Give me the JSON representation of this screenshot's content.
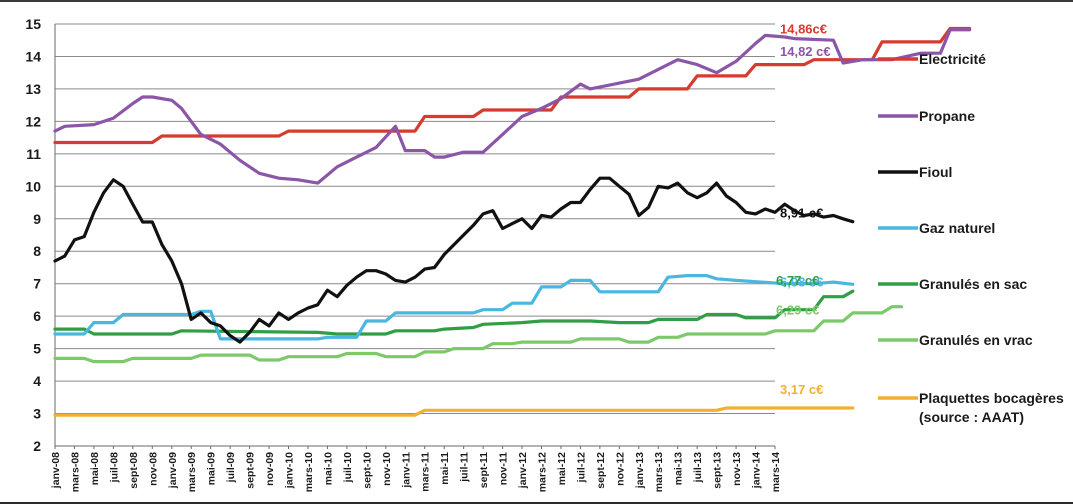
{
  "chart_data": {
    "type": "line",
    "ylim": [
      2,
      15
    ],
    "yticks": [
      2,
      3,
      4,
      5,
      6,
      7,
      8,
      9,
      10,
      11,
      12,
      13,
      14,
      15
    ],
    "grid": true,
    "legend_position": "right",
    "months_count": 75,
    "x_tick_labels": [
      "janv-08",
      "mars-08",
      "mai-08",
      "juil-08",
      "sept-08",
      "nov-08",
      "janv-09",
      "mars-09",
      "mai-09",
      "juil-09",
      "sept-09",
      "nov-09",
      "janv-10",
      "mars-10",
      "mai-10",
      "juil-10",
      "sept-10",
      "nov-10",
      "janv-11",
      "mars-11",
      "mai-11",
      "juil-11",
      "sept-11",
      "nov-11",
      "janv-12",
      "mars-12",
      "mai-12",
      "juil-12",
      "sept-12",
      "nov-12",
      "janv-13",
      "mars-13",
      "mai-13",
      "juil-13",
      "sept-13",
      "nov-13",
      "janv-14",
      "mars-14"
    ],
    "series": [
      {
        "name": "Electricité",
        "color": "#d63b2f",
        "end_label": "14,86c€",
        "points": [
          [
            0,
            11.35
          ],
          [
            10,
            11.35
          ],
          [
            11,
            11.55
          ],
          [
            23,
            11.55
          ],
          [
            24,
            11.7
          ],
          [
            37,
            11.7
          ],
          [
            38,
            12.15
          ],
          [
            43,
            12.15
          ],
          [
            44,
            12.35
          ],
          [
            51,
            12.35
          ],
          [
            52,
            12.75
          ],
          [
            59,
            12.75
          ],
          [
            60,
            13.0
          ],
          [
            65,
            13.0
          ],
          [
            66,
            13.4
          ],
          [
            71,
            13.4
          ],
          [
            72,
            13.75
          ],
          [
            77,
            13.75
          ],
          [
            78,
            13.9
          ],
          [
            84,
            13.9
          ],
          [
            85,
            14.45
          ],
          [
            91,
            14.45
          ],
          [
            92,
            14.86
          ],
          [
            94,
            14.86
          ]
        ]
      },
      {
        "name": "Propane",
        "color": "#8b55a8",
        "end_label": "14,82 c€",
        "points": [
          [
            0,
            11.7
          ],
          [
            1,
            11.85
          ],
          [
            4,
            11.9
          ],
          [
            6,
            12.1
          ],
          [
            8,
            12.55
          ],
          [
            9,
            12.75
          ],
          [
            10,
            12.75
          ],
          [
            12,
            12.65
          ],
          [
            13,
            12.4
          ],
          [
            15,
            11.6
          ],
          [
            17,
            11.3
          ],
          [
            19,
            10.8
          ],
          [
            21,
            10.4
          ],
          [
            23,
            10.25
          ],
          [
            25,
            10.2
          ],
          [
            27,
            10.1
          ],
          [
            29,
            10.6
          ],
          [
            31,
            10.9
          ],
          [
            33,
            11.2
          ],
          [
            35,
            11.85
          ],
          [
            36,
            11.1
          ],
          [
            38,
            11.1
          ],
          [
            39,
            10.9
          ],
          [
            40,
            10.9
          ],
          [
            42,
            11.05
          ],
          [
            44,
            11.05
          ],
          [
            46,
            11.6
          ],
          [
            48,
            12.15
          ],
          [
            50,
            12.4
          ],
          [
            52,
            12.7
          ],
          [
            54,
            13.15
          ],
          [
            55,
            13.0
          ],
          [
            60,
            13.3
          ],
          [
            64,
            13.9
          ],
          [
            66,
            13.75
          ],
          [
            68,
            13.5
          ],
          [
            70,
            13.85
          ],
          [
            72,
            14.4
          ],
          [
            73,
            14.65
          ],
          [
            75,
            14.6
          ],
          [
            76,
            14.55
          ],
          [
            80,
            14.5
          ],
          [
            81,
            13.8
          ],
          [
            83,
            13.9
          ],
          [
            86,
            13.9
          ],
          [
            89,
            14.1
          ],
          [
            91,
            14.1
          ],
          [
            92,
            14.82
          ],
          [
            94,
            14.82
          ]
        ]
      },
      {
        "name": "Fioul",
        "color": "#111111",
        "end_label": "8,91 c€",
        "points": [
          [
            0,
            7.7
          ],
          [
            1,
            7.85
          ],
          [
            2,
            8.35
          ],
          [
            3,
            8.45
          ],
          [
            4,
            9.2
          ],
          [
            5,
            9.8
          ],
          [
            6,
            10.2
          ],
          [
            7,
            10.0
          ],
          [
            8,
            9.45
          ],
          [
            9,
            8.9
          ],
          [
            10,
            8.9
          ],
          [
            11,
            8.2
          ],
          [
            12,
            7.7
          ],
          [
            13,
            7.0
          ],
          [
            14,
            5.9
          ],
          [
            15,
            6.1
          ],
          [
            16,
            5.8
          ],
          [
            17,
            5.7
          ],
          [
            18,
            5.4
          ],
          [
            19,
            5.2
          ],
          [
            20,
            5.5
          ],
          [
            21,
            5.9
          ],
          [
            22,
            5.7
          ],
          [
            23,
            6.1
          ],
          [
            24,
            5.9
          ],
          [
            25,
            6.1
          ],
          [
            26,
            6.25
          ],
          [
            27,
            6.35
          ],
          [
            28,
            6.8
          ],
          [
            29,
            6.6
          ],
          [
            30,
            6.95
          ],
          [
            31,
            7.2
          ],
          [
            32,
            7.4
          ],
          [
            33,
            7.4
          ],
          [
            34,
            7.3
          ],
          [
            35,
            7.1
          ],
          [
            36,
            7.05
          ],
          [
            37,
            7.2
          ],
          [
            38,
            7.45
          ],
          [
            39,
            7.5
          ],
          [
            40,
            7.9
          ],
          [
            41,
            8.2
          ],
          [
            42,
            8.5
          ],
          [
            43,
            8.8
          ],
          [
            44,
            9.15
          ],
          [
            45,
            9.25
          ],
          [
            46,
            8.7
          ],
          [
            47,
            8.85
          ],
          [
            48,
            9.0
          ],
          [
            49,
            8.7
          ],
          [
            50,
            9.1
          ],
          [
            51,
            9.05
          ],
          [
            52,
            9.3
          ],
          [
            53,
            9.5
          ],
          [
            54,
            9.5
          ],
          [
            55,
            9.9
          ],
          [
            56,
            10.25
          ],
          [
            57,
            10.25
          ],
          [
            58,
            10.0
          ],
          [
            59,
            9.75
          ],
          [
            60,
            9.1
          ],
          [
            61,
            9.35
          ],
          [
            62,
            10.0
          ],
          [
            63,
            9.95
          ],
          [
            64,
            10.1
          ],
          [
            65,
            9.8
          ],
          [
            66,
            9.65
          ],
          [
            67,
            9.8
          ],
          [
            68,
            10.1
          ],
          [
            69,
            9.7
          ],
          [
            70,
            9.5
          ],
          [
            71,
            9.2
          ],
          [
            72,
            9.15
          ],
          [
            73,
            9.3
          ],
          [
            74,
            9.2
          ],
          [
            75,
            9.45
          ],
          [
            76,
            9.25
          ],
          [
            77,
            9.1
          ],
          [
            78,
            9.15
          ],
          [
            79,
            9.05
          ],
          [
            80,
            9.1
          ],
          [
            81,
            9.0
          ],
          [
            82,
            8.91
          ]
        ]
      },
      {
        "name": "Gaz naturel",
        "color": "#4ab7e0",
        "end_label": "6,98 c€",
        "points": [
          [
            0,
            5.45
          ],
          [
            3,
            5.45
          ],
          [
            4,
            5.8
          ],
          [
            6,
            5.8
          ],
          [
            7,
            6.05
          ],
          [
            14,
            6.05
          ],
          [
            15,
            6.15
          ],
          [
            16,
            6.15
          ],
          [
            17,
            5.3
          ],
          [
            27,
            5.3
          ],
          [
            28,
            5.35
          ],
          [
            31,
            5.35
          ],
          [
            32,
            5.85
          ],
          [
            34,
            5.85
          ],
          [
            35,
            6.1
          ],
          [
            43,
            6.1
          ],
          [
            44,
            6.2
          ],
          [
            46,
            6.2
          ],
          [
            47,
            6.4
          ],
          [
            49,
            6.4
          ],
          [
            50,
            6.9
          ],
          [
            52,
            6.9
          ],
          [
            53,
            7.1
          ],
          [
            55,
            7.1
          ],
          [
            56,
            6.75
          ],
          [
            62,
            6.75
          ],
          [
            63,
            7.2
          ],
          [
            65,
            7.25
          ],
          [
            67,
            7.25
          ],
          [
            68,
            7.15
          ],
          [
            70,
            7.1
          ],
          [
            75,
            7.0
          ],
          [
            78,
            7.0
          ],
          [
            80,
            7.05
          ],
          [
            82,
            6.98
          ]
        ]
      },
      {
        "name": "Granulés en sac",
        "color": "#2f9e44",
        "end_label": "6,77 c€",
        "points": [
          [
            0,
            5.6
          ],
          [
            3,
            5.6
          ],
          [
            4,
            5.45
          ],
          [
            12,
            5.45
          ],
          [
            13,
            5.55
          ],
          [
            27,
            5.5
          ],
          [
            29,
            5.45
          ],
          [
            34,
            5.45
          ],
          [
            35,
            5.55
          ],
          [
            39,
            5.55
          ],
          [
            40,
            5.6
          ],
          [
            43,
            5.65
          ],
          [
            44,
            5.75
          ],
          [
            48,
            5.8
          ],
          [
            50,
            5.85
          ],
          [
            55,
            5.85
          ],
          [
            58,
            5.8
          ],
          [
            61,
            5.8
          ],
          [
            62,
            5.9
          ],
          [
            66,
            5.9
          ],
          [
            67,
            6.05
          ],
          [
            70,
            6.05
          ],
          [
            71,
            5.95
          ],
          [
            74,
            5.95
          ],
          [
            75,
            6.2
          ],
          [
            78,
            6.2
          ],
          [
            79,
            6.6
          ],
          [
            81,
            6.6
          ],
          [
            82,
            6.77
          ]
        ]
      },
      {
        "name": "Granulés en vrac",
        "color": "#7cc96a",
        "end_label": "6,29 c€",
        "points": [
          [
            0,
            4.7
          ],
          [
            3,
            4.7
          ],
          [
            4,
            4.6
          ],
          [
            7,
            4.6
          ],
          [
            8,
            4.7
          ],
          [
            14,
            4.7
          ],
          [
            15,
            4.8
          ],
          [
            20,
            4.8
          ],
          [
            21,
            4.65
          ],
          [
            23,
            4.65
          ],
          [
            24,
            4.75
          ],
          [
            29,
            4.75
          ],
          [
            30,
            4.85
          ],
          [
            33,
            4.85
          ],
          [
            34,
            4.75
          ],
          [
            37,
            4.75
          ],
          [
            38,
            4.9
          ],
          [
            40,
            4.9
          ],
          [
            41,
            5.0
          ],
          [
            44,
            5.0
          ],
          [
            45,
            5.15
          ],
          [
            47,
            5.15
          ],
          [
            48,
            5.2
          ],
          [
            53,
            5.2
          ],
          [
            54,
            5.3
          ],
          [
            58,
            5.3
          ],
          [
            59,
            5.2
          ],
          [
            61,
            5.2
          ],
          [
            62,
            5.35
          ],
          [
            64,
            5.35
          ],
          [
            65,
            5.45
          ],
          [
            73,
            5.45
          ],
          [
            74,
            5.55
          ],
          [
            78,
            5.55
          ],
          [
            79,
            5.85
          ],
          [
            81,
            5.85
          ],
          [
            82,
            6.1
          ],
          [
            85,
            6.1
          ],
          [
            86,
            6.29
          ],
          [
            87,
            6.29
          ]
        ]
      },
      {
        "name": "Plaquettes bocagères (source : AAAT)",
        "color": "#f0b030",
        "end_label": "3,17 c€",
        "points": [
          [
            0,
            2.95
          ],
          [
            37,
            2.95
          ],
          [
            38,
            3.1
          ],
          [
            68,
            3.1
          ],
          [
            69,
            3.17
          ],
          [
            82,
            3.17
          ]
        ]
      }
    ]
  }
}
